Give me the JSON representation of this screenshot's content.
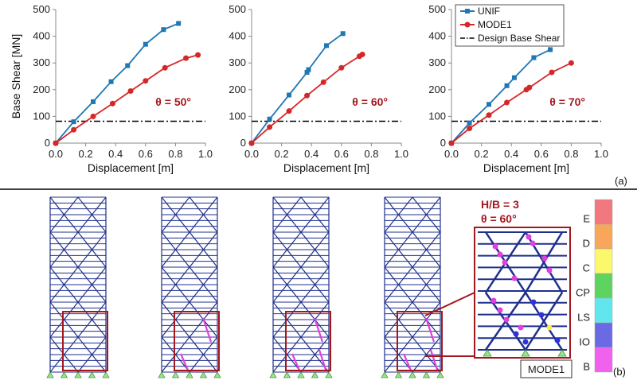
{
  "chart_data": [
    {
      "type": "line",
      "panel": "a-1",
      "annotation": "θ = 50°",
      "xlabel": "Displacement [m]",
      "ylabel": "Base Shear [MN]",
      "xlim": [
        0,
        1.0
      ],
      "ylim": [
        0,
        500
      ],
      "xticks": [
        "0.0",
        "0.2",
        "0.4",
        "0.6",
        "0.8",
        "1.0"
      ],
      "yticks": [
        "0",
        "100",
        "200",
        "300",
        "400",
        "500"
      ],
      "design_base_shear": 82,
      "series": [
        {
          "name": "UNIF",
          "color": "#1f77b4",
          "marker": "square",
          "points": [
            [
              0,
              0
            ],
            [
              0.12,
              80
            ],
            [
              0.25,
              155
            ],
            [
              0.37,
              230
            ],
            [
              0.48,
              290
            ],
            [
              0.6,
              370
            ],
            [
              0.72,
              425
            ],
            [
              0.82,
              448
            ]
          ]
        },
        {
          "name": "MODE1",
          "color": "#d62728",
          "marker": "circle",
          "points": [
            [
              0,
              0
            ],
            [
              0.12,
              50
            ],
            [
              0.25,
              100
            ],
            [
              0.38,
              148
            ],
            [
              0.5,
              195
            ],
            [
              0.6,
              233
            ],
            [
              0.73,
              282
            ],
            [
              0.87,
              318
            ],
            [
              0.95,
              330
            ]
          ]
        }
      ]
    },
    {
      "type": "line",
      "panel": "a-2",
      "annotation": "θ = 60°",
      "xlabel": "Displacement [m]",
      "ylabel": "",
      "xlim": [
        0,
        1.0
      ],
      "ylim": [
        0,
        500
      ],
      "xticks": [
        "0.0",
        "0.2",
        "0.4",
        "0.6",
        "0.8",
        "1.0"
      ],
      "yticks": [
        "0",
        "100",
        "200",
        "300",
        "400",
        "500"
      ],
      "design_base_shear": 82,
      "series": [
        {
          "name": "UNIF",
          "color": "#1f77b4",
          "marker": "square",
          "points": [
            [
              0,
              0
            ],
            [
              0.12,
              90
            ],
            [
              0.25,
              180
            ],
            [
              0.37,
              265
            ],
            [
              0.38,
              275
            ],
            [
              0.5,
              365
            ],
            [
              0.61,
              410
            ]
          ]
        },
        {
          "name": "MODE1",
          "color": "#d62728",
          "marker": "circle",
          "points": [
            [
              0,
              0
            ],
            [
              0.12,
              60
            ],
            [
              0.25,
              120
            ],
            [
              0.37,
              178
            ],
            [
              0.48,
              228
            ],
            [
              0.6,
              282
            ],
            [
              0.72,
              325
            ],
            [
              0.74,
              332
            ]
          ]
        }
      ]
    },
    {
      "type": "line",
      "panel": "a-3",
      "annotation": "θ = 70°",
      "xlabel": "Displacement [m]",
      "ylabel": "",
      "xlim": [
        0,
        1.0
      ],
      "ylim": [
        0,
        500
      ],
      "xticks": [
        "0.0",
        "0.2",
        "0.4",
        "0.6",
        "0.8",
        "1.0"
      ],
      "yticks": [
        "0",
        "100",
        "200",
        "300",
        "400",
        "500"
      ],
      "design_base_shear": 82,
      "series": [
        {
          "name": "UNIF",
          "color": "#1f77b4",
          "marker": "square",
          "points": [
            [
              0,
              0
            ],
            [
              0.12,
              75
            ],
            [
              0.25,
              145
            ],
            [
              0.37,
              215
            ],
            [
              0.42,
              245
            ],
            [
              0.55,
              320
            ],
            [
              0.66,
              350
            ]
          ]
        },
        {
          "name": "MODE1",
          "color": "#d62728",
          "marker": "circle",
          "points": [
            [
              0,
              0
            ],
            [
              0.12,
              55
            ],
            [
              0.25,
              105
            ],
            [
              0.37,
              152
            ],
            [
              0.5,
              200
            ],
            [
              0.52,
              208
            ],
            [
              0.67,
              265
            ],
            [
              0.8,
              300
            ]
          ]
        }
      ]
    }
  ],
  "legend": {
    "items": [
      {
        "label": "UNIF",
        "color": "#1f77b4",
        "marker": "square"
      },
      {
        "label": "MODE1",
        "color": "#d62728",
        "marker": "circle"
      },
      {
        "label": "Design Base Shear",
        "color": "#000000",
        "marker": "dashdot"
      }
    ]
  },
  "panel_labels": {
    "a": "(a)",
    "b": "(b)"
  },
  "inset": {
    "hb": "H/B = 3",
    "theta": "θ = 60°",
    "mode_label": "MODE1"
  },
  "colorbar": {
    "labels": [
      "E",
      "D",
      "C",
      "CP",
      "LS",
      "IO",
      "B"
    ],
    "colors": [
      "#f0787e",
      "#f8a65a",
      "#fbf96b",
      "#5fd35f",
      "#62e6ee",
      "#6a6ae4",
      "#f061ee"
    ]
  },
  "colors": {
    "frame_blue": "#1f2f8c",
    "highlight_red": "#a3181f"
  }
}
